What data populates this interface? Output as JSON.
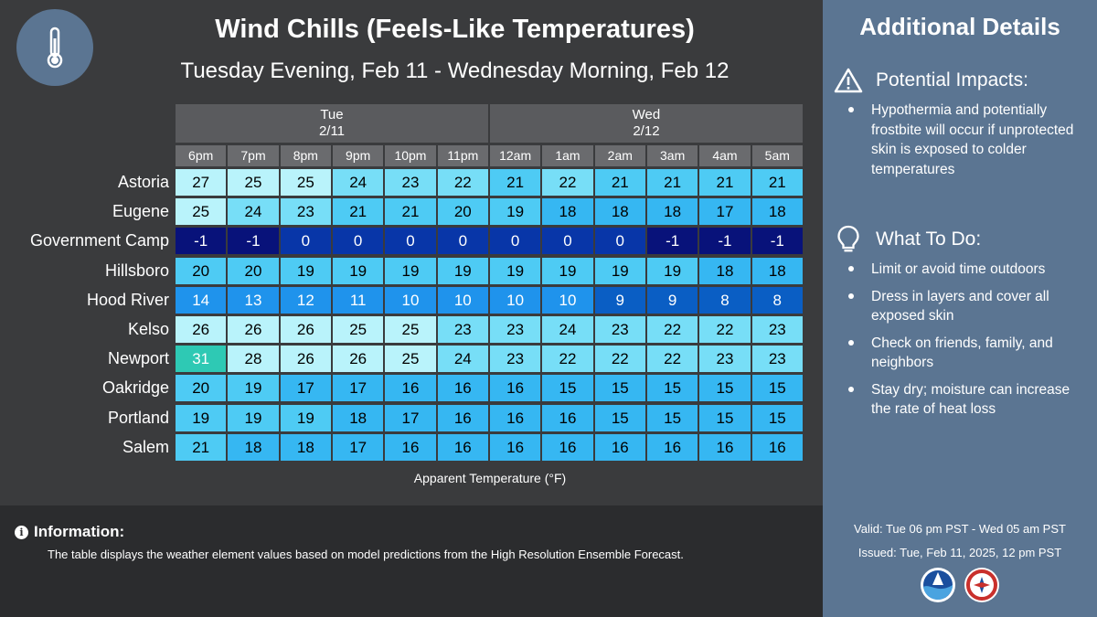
{
  "header": {
    "title": "Wind Chills (Feels-Like Temperatures)",
    "subtitle": "Tuesday Evening, Feb 11 - Wednesday Morning, Feb 12",
    "icon": "thermometer-icon"
  },
  "chart_data": {
    "type": "table",
    "days": [
      {
        "label": "Tue",
        "date": "2/11",
        "span": 6
      },
      {
        "label": "Wed",
        "date": "2/12",
        "span": 6
      }
    ],
    "columns": [
      "6pm",
      "7pm",
      "8pm",
      "9pm",
      "10pm",
      "11pm",
      "12am",
      "1am",
      "2am",
      "3am",
      "4am",
      "5am"
    ],
    "rows": [
      {
        "name": "Astoria",
        "values": [
          27,
          25,
          25,
          24,
          23,
          22,
          21,
          22,
          21,
          21,
          21,
          21
        ]
      },
      {
        "name": "Eugene",
        "values": [
          25,
          24,
          23,
          21,
          21,
          20,
          19,
          18,
          18,
          18,
          17,
          18
        ]
      },
      {
        "name": "Government Camp",
        "values": [
          -1,
          -1,
          0,
          0,
          0,
          0,
          0,
          0,
          0,
          -1,
          -1,
          -1
        ]
      },
      {
        "name": "Hillsboro",
        "values": [
          20,
          20,
          19,
          19,
          19,
          19,
          19,
          19,
          19,
          19,
          18,
          18
        ]
      },
      {
        "name": "Hood River",
        "values": [
          14,
          13,
          12,
          11,
          10,
          10,
          10,
          10,
          9,
          9,
          8,
          8
        ]
      },
      {
        "name": "Kelso",
        "values": [
          26,
          26,
          26,
          25,
          25,
          23,
          23,
          24,
          23,
          22,
          22,
          23
        ]
      },
      {
        "name": "Newport",
        "values": [
          31,
          28,
          26,
          26,
          25,
          24,
          23,
          22,
          22,
          22,
          23,
          23
        ]
      },
      {
        "name": "Oakridge",
        "values": [
          20,
          19,
          17,
          17,
          16,
          16,
          16,
          15,
          15,
          15,
          15,
          15
        ]
      },
      {
        "name": "Portland",
        "values": [
          19,
          19,
          19,
          18,
          17,
          16,
          16,
          16,
          15,
          15,
          15,
          15
        ]
      },
      {
        "name": "Salem",
        "values": [
          21,
          18,
          18,
          17,
          16,
          16,
          16,
          16,
          16,
          16,
          16,
          16
        ]
      }
    ],
    "xlabel": "Apparent Temperature (°F)",
    "color_scale": [
      {
        "min": 29,
        "color": "#2ec9b4",
        "text": "#ffffff"
      },
      {
        "min": 25,
        "color": "#b9f3fb",
        "text": "#000000"
      },
      {
        "min": 22,
        "color": "#77def7",
        "text": "#000000"
      },
      {
        "min": 19,
        "color": "#4ecbf4",
        "text": "#000000"
      },
      {
        "min": 15,
        "color": "#36b7f2",
        "text": "#000000"
      },
      {
        "min": 10,
        "color": "#1f93ec",
        "text": "#ffffff"
      },
      {
        "min": 8,
        "color": "#0a5ec4",
        "text": "#ffffff"
      },
      {
        "min": 0,
        "color": "#0836a8",
        "text": "#ffffff"
      },
      {
        "min": -100,
        "color": "#08127a",
        "text": "#ffffff"
      }
    ]
  },
  "info": {
    "title": "Information:",
    "text": "The table displays the weather element values based on model predictions from the High Resolution Ensemble Forecast."
  },
  "details": {
    "title": "Additional Details",
    "impacts_heading": "Potential Impacts:",
    "impacts": [
      "Hypothermia and potentially frostbite will occur if unprotected skin is exposed to colder temperatures"
    ],
    "todo_heading": "What To Do:",
    "todo": [
      "Limit or avoid time outdoors",
      "Dress in layers and cover all exposed skin",
      "Check on friends, family, and neighbors",
      "Stay dry; moisture can increase the rate of heat loss"
    ],
    "valid": "Valid: Tue 06 pm PST - Wed 05 am PST",
    "issued": "Issued: Tue, Feb 11, 2025, 12 pm PST"
  }
}
